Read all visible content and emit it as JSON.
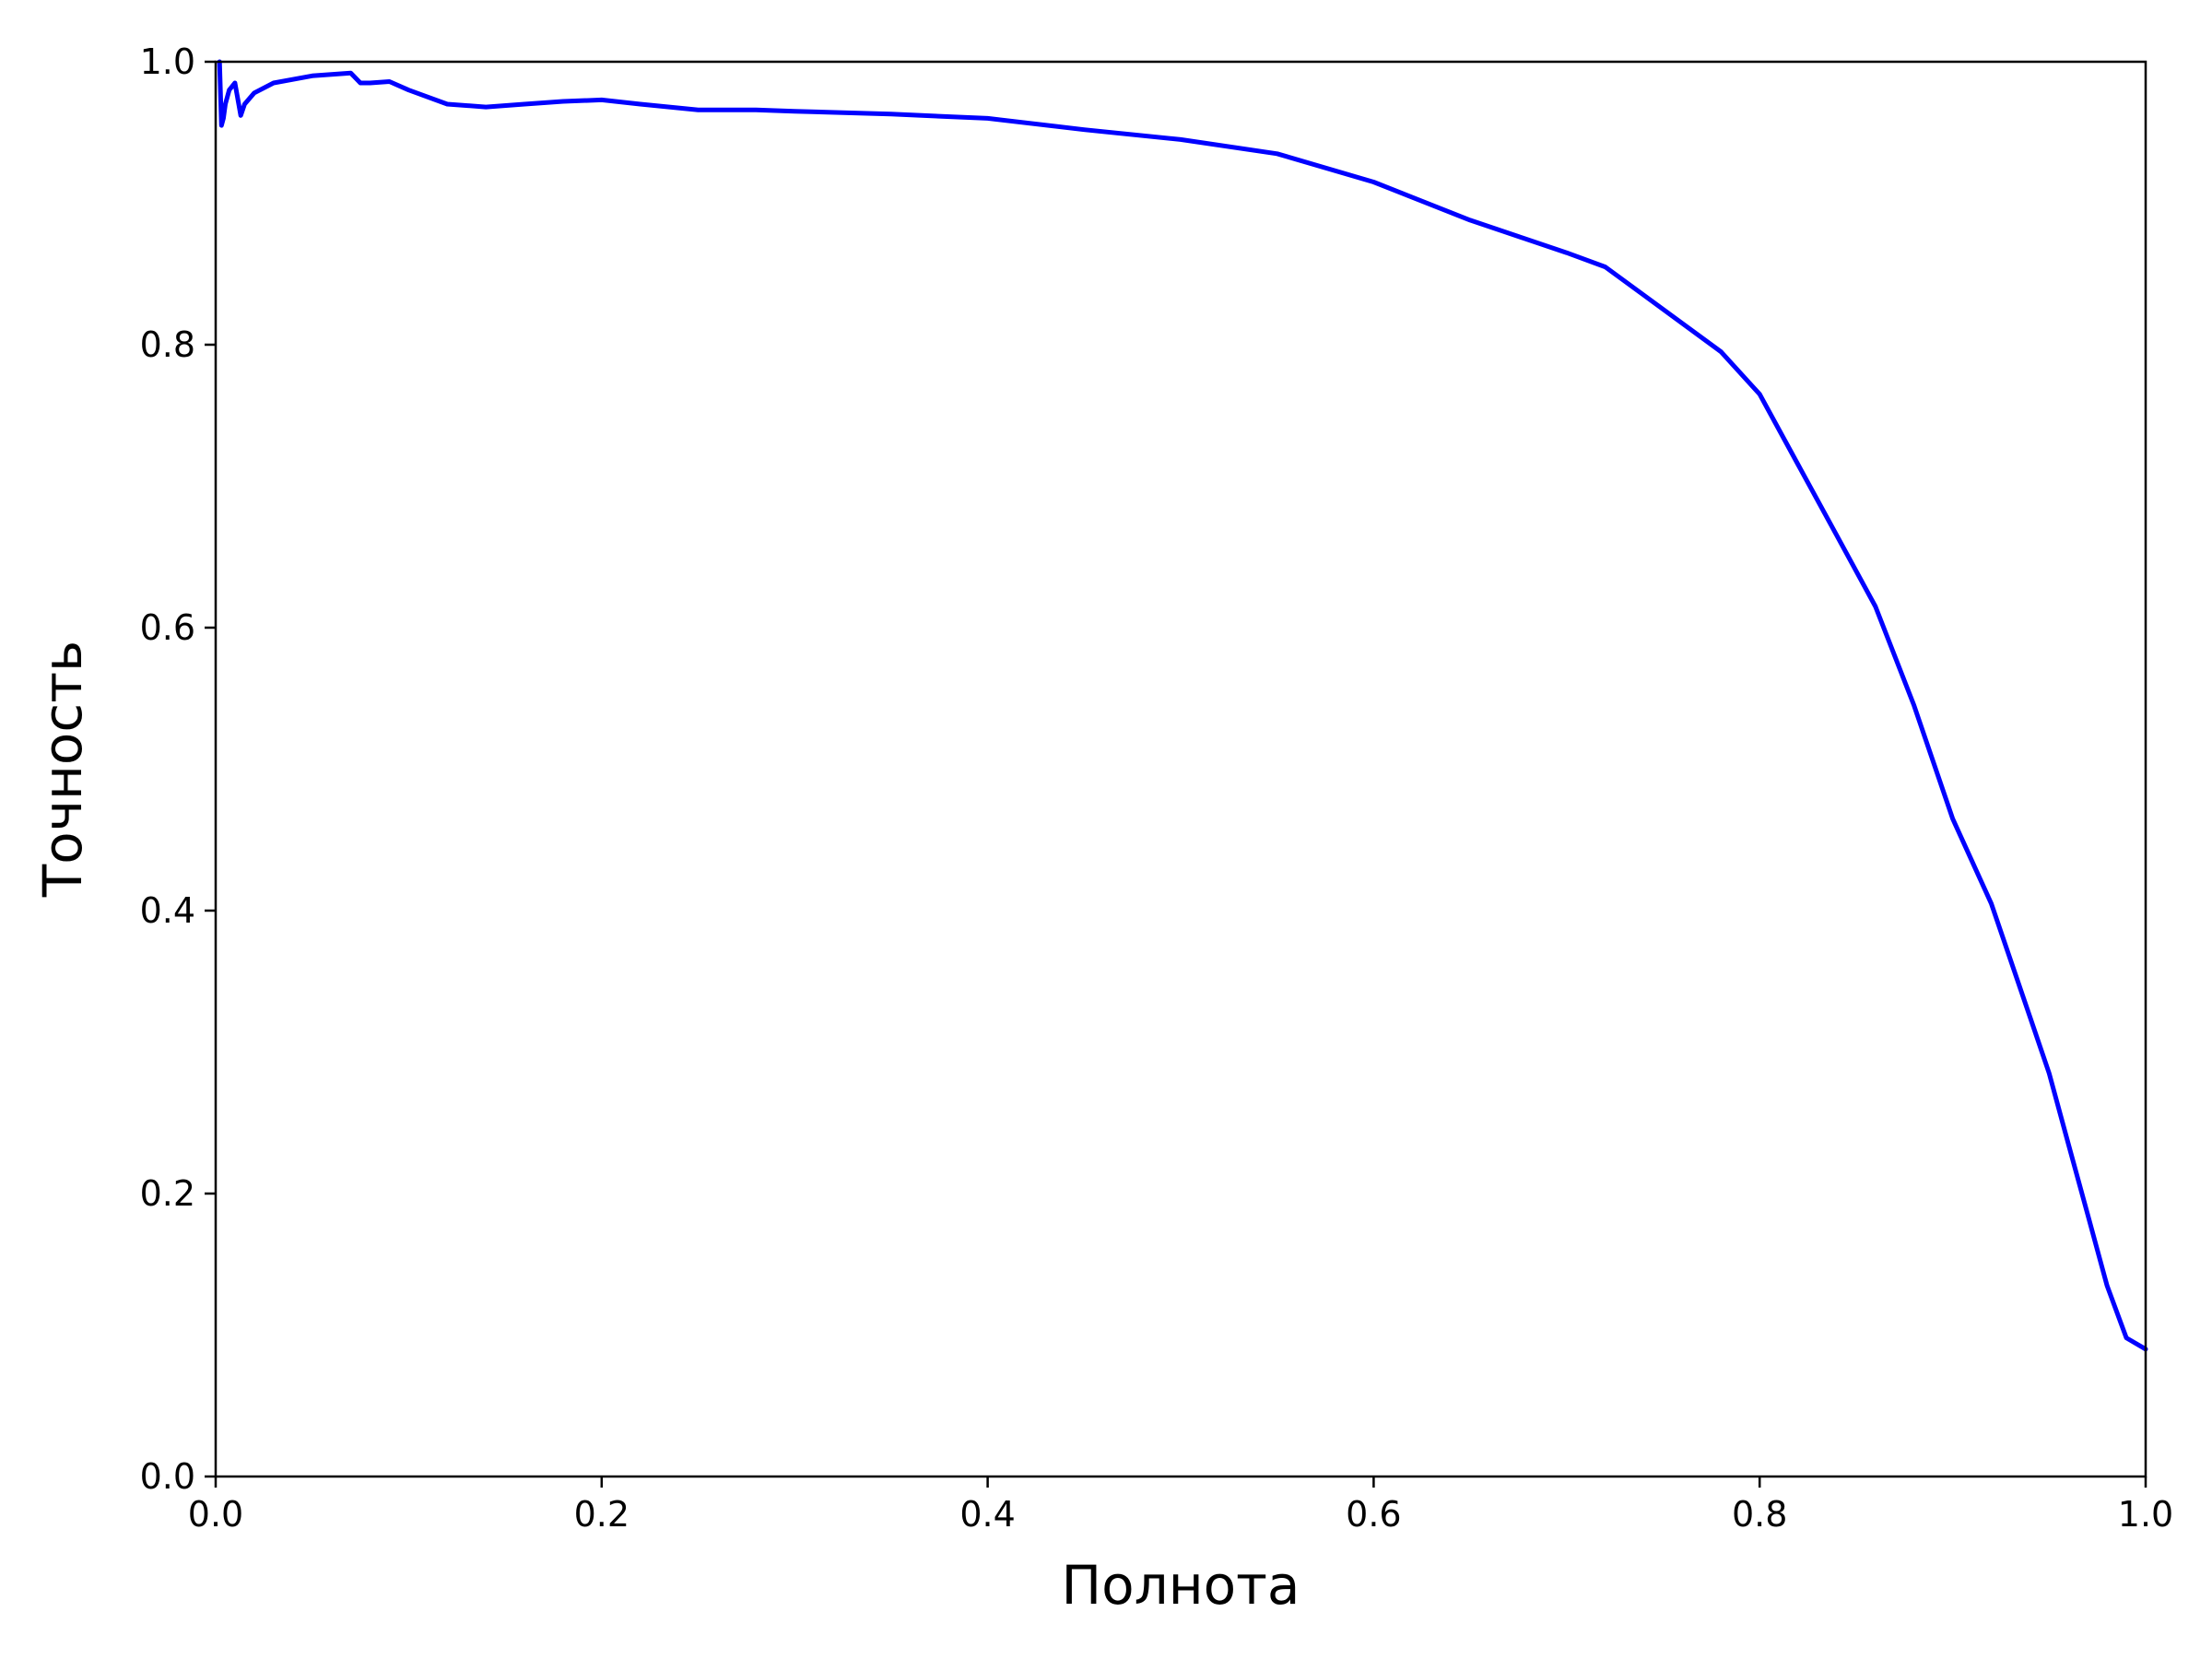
{
  "chart_data": {
    "type": "line",
    "title": "",
    "xlabel": "Полнота",
    "ylabel": "Точность",
    "xlim": [
      0.0,
      1.0
    ],
    "ylim": [
      0.0,
      1.0
    ],
    "xticks": [
      "0.0",
      "0.2",
      "0.4",
      "0.6",
      "0.8",
      "1.0"
    ],
    "yticks": [
      "0.0",
      "0.2",
      "0.4",
      "0.6",
      "0.8",
      "1.0"
    ],
    "grid": false,
    "legend": "none",
    "series": [
      {
        "color": "#0000ff",
        "x": [
          0.002,
          0.003,
          0.004,
          0.005,
          0.007,
          0.01,
          0.013,
          0.015,
          0.02,
          0.03,
          0.05,
          0.07,
          0.075,
          0.08,
          0.09,
          0.1,
          0.12,
          0.14,
          0.16,
          0.18,
          0.2,
          0.22,
          0.25,
          0.28,
          0.3,
          0.35,
          0.4,
          0.45,
          0.5,
          0.55,
          0.6,
          0.65,
          0.7,
          0.72,
          0.75,
          0.78,
          0.8,
          0.82,
          0.84,
          0.86,
          0.88,
          0.9,
          0.92,
          0.94,
          0.95,
          0.96,
          0.97,
          0.98,
          0.99,
          1.0
        ],
        "values": [
          1.0,
          0.955,
          0.96,
          0.97,
          0.98,
          0.985,
          0.962,
          0.97,
          0.978,
          0.985,
          0.99,
          0.992,
          0.985,
          0.985,
          0.986,
          0.98,
          0.97,
          0.968,
          0.97,
          0.972,
          0.973,
          0.97,
          0.966,
          0.966,
          0.965,
          0.963,
          0.96,
          0.952,
          0.945,
          0.935,
          0.915,
          0.888,
          0.865,
          0.855,
          0.825,
          0.795,
          0.765,
          0.715,
          0.665,
          0.615,
          0.545,
          0.465,
          0.405,
          0.325,
          0.285,
          0.235,
          0.185,
          0.135,
          0.098,
          0.09
        ]
      }
    ]
  }
}
